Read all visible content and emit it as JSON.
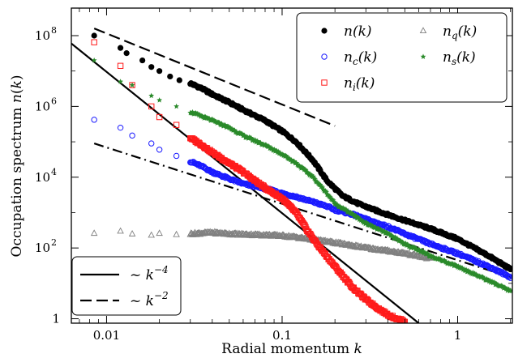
{
  "chart_data": {
    "type": "scatter",
    "xlabel": "Radial momentum k",
    "ylabel": "Occupation spectrum n(k)",
    "xscale": "log",
    "yscale": "log",
    "xlim": [
      0.0063,
      2.05
    ],
    "ylim": [
      0.75,
      600000000
    ],
    "grid": false,
    "legend_placement": "top-right",
    "x_ticks": [
      {
        "value": 0.01,
        "label": "0.01"
      },
      {
        "value": 0.1,
        "label": "0.1"
      },
      {
        "value": 1,
        "label": "1"
      }
    ],
    "y_ticks": [
      {
        "value": 1,
        "label": "1"
      },
      {
        "value": 100,
        "label": "10",
        "exp": "2"
      },
      {
        "value": 10000,
        "label": "10",
        "exp": "4"
      },
      {
        "value": 1000000,
        "label": "10",
        "exp": "6"
      },
      {
        "value": 100000000,
        "label": "10",
        "exp": "8"
      }
    ],
    "series": [
      {
        "name": "n(k)",
        "marker": "filled-circle",
        "color": "#000000",
        "k": [
          0.0085,
          0.012,
          0.013,
          0.016,
          0.018,
          0.02,
          0.023,
          0.026,
          0.03,
          0.035,
          0.04,
          0.05,
          0.06,
          0.08,
          0.1,
          0.12,
          0.15,
          0.18,
          0.22,
          0.27,
          0.35,
          0.5,
          0.7,
          1.0,
          1.5,
          2.0
        ],
        "n": [
          100000000,
          45000000,
          32000000,
          20000000,
          13000000,
          10000000,
          7000000,
          5500000,
          4500000,
          3200000,
          2200000,
          1300000,
          800000,
          400000,
          200000,
          100000,
          30000,
          8000,
          3000,
          1800,
          1100,
          600,
          350,
          180,
          60,
          25
        ]
      },
      {
        "name": "n_c(k)",
        "marker": "open-circle",
        "color": "#1a1aff",
        "k": [
          0.0085,
          0.012,
          0.014,
          0.018,
          0.02,
          0.025,
          0.03,
          0.035,
          0.04,
          0.05,
          0.06,
          0.08,
          0.1,
          0.12,
          0.15,
          0.18,
          0.2,
          0.25,
          0.3,
          0.4,
          0.5,
          0.7,
          1.0,
          1.5,
          2.0
        ],
        "n": [
          420000,
          250000,
          150000,
          90000,
          60000,
          40000,
          28000,
          20000,
          14000,
          9000,
          6500,
          4800,
          3500,
          2800,
          2000,
          1500,
          1200,
          900,
          650,
          400,
          250,
          130,
          70,
          30,
          15
        ]
      },
      {
        "name": "n_i(k)",
        "marker": "open-square",
        "color": "#ff1a1a",
        "k": [
          0.0085,
          0.012,
          0.014,
          0.018,
          0.02,
          0.025,
          0.03,
          0.035,
          0.04,
          0.05,
          0.06,
          0.07,
          0.08,
          0.1,
          0.12,
          0.14,
          0.16,
          0.2,
          0.25,
          0.3,
          0.35,
          0.4,
          0.45,
          0.5
        ],
        "n": [
          65000000,
          14000000,
          4000000,
          1000000,
          500000,
          300000,
          130000,
          80000,
          50000,
          25000,
          14000,
          8000,
          5000,
          2500,
          1000,
          300,
          120,
          30,
          8,
          3.5,
          2,
          1.3,
          1,
          0.85
        ]
      },
      {
        "name": "n_q(k)",
        "marker": "open-triangle",
        "color": "#808080",
        "k": [
          0.0085,
          0.012,
          0.014,
          0.018,
          0.02,
          0.025,
          0.03,
          0.04,
          0.05,
          0.06,
          0.08,
          0.1,
          0.12,
          0.15,
          0.2,
          0.3,
          0.5,
          0.7
        ],
        "n": [
          260,
          300,
          250,
          230,
          260,
          240,
          250,
          270,
          250,
          240,
          230,
          220,
          200,
          170,
          140,
          100,
          70,
          50
        ]
      },
      {
        "name": "n_s(k)",
        "marker": "star",
        "color": "#2a8a2a",
        "k": [
          0.0085,
          0.012,
          0.014,
          0.018,
          0.02,
          0.025,
          0.03,
          0.04,
          0.05,
          0.06,
          0.08,
          0.1,
          0.12,
          0.15,
          0.18,
          0.2,
          0.25,
          0.3,
          0.4,
          0.5,
          0.7,
          1.0,
          1.5,
          2.0
        ],
        "n": [
          20000000,
          5000000,
          4000000,
          2000000,
          1500000,
          1000000,
          700000,
          400000,
          250000,
          150000,
          80000,
          45000,
          25000,
          10000,
          3500,
          1800,
          900,
          500,
          250,
          130,
          60,
          30,
          12,
          6
        ]
      }
    ],
    "reference_lines": [
      {
        "name": "~ k^-4",
        "style": "solid",
        "color": "#000000",
        "points": [
          [
            0.0063,
            60000000
          ],
          [
            0.6,
            0.75
          ]
        ]
      },
      {
        "name": "~ k^-2",
        "style": "dashed",
        "color": "#000000",
        "points": [
          [
            0.0085,
            160000000
          ],
          [
            0.2,
            280000
          ]
        ]
      },
      {
        "name": "",
        "style": "dashdot",
        "color": "#000000",
        "points": [
          [
            0.0085,
            90000
          ],
          [
            2.0,
            15
          ]
        ]
      }
    ],
    "legend_upper": [
      {
        "series": "n(k)",
        "text": "n",
        "sub": "",
        "suffix": "(k)",
        "marker": "filled-circle",
        "color": "#000000"
      },
      {
        "series": "n_q(k)",
        "text": "n",
        "sub": "q",
        "suffix": "(k)",
        "marker": "open-triangle",
        "color": "#808080"
      },
      {
        "series": "n_c(k)",
        "text": "n",
        "sub": "c",
        "suffix": "(k)",
        "marker": "open-circle",
        "color": "#1a1aff"
      },
      {
        "series": "n_s(k)",
        "text": "n",
        "sub": "s",
        "suffix": "(k)",
        "marker": "star",
        "color": "#2a8a2a"
      },
      {
        "series": "n_i(k)",
        "text": "n",
        "sub": "i",
        "suffix": "(k)",
        "marker": "open-square",
        "color": "#ff1a1a"
      }
    ],
    "legend_lower": [
      {
        "style": "solid",
        "text": "~ k",
        "exp": "−4"
      },
      {
        "style": "dashed",
        "text": "~ k",
        "exp": "−2"
      }
    ]
  }
}
